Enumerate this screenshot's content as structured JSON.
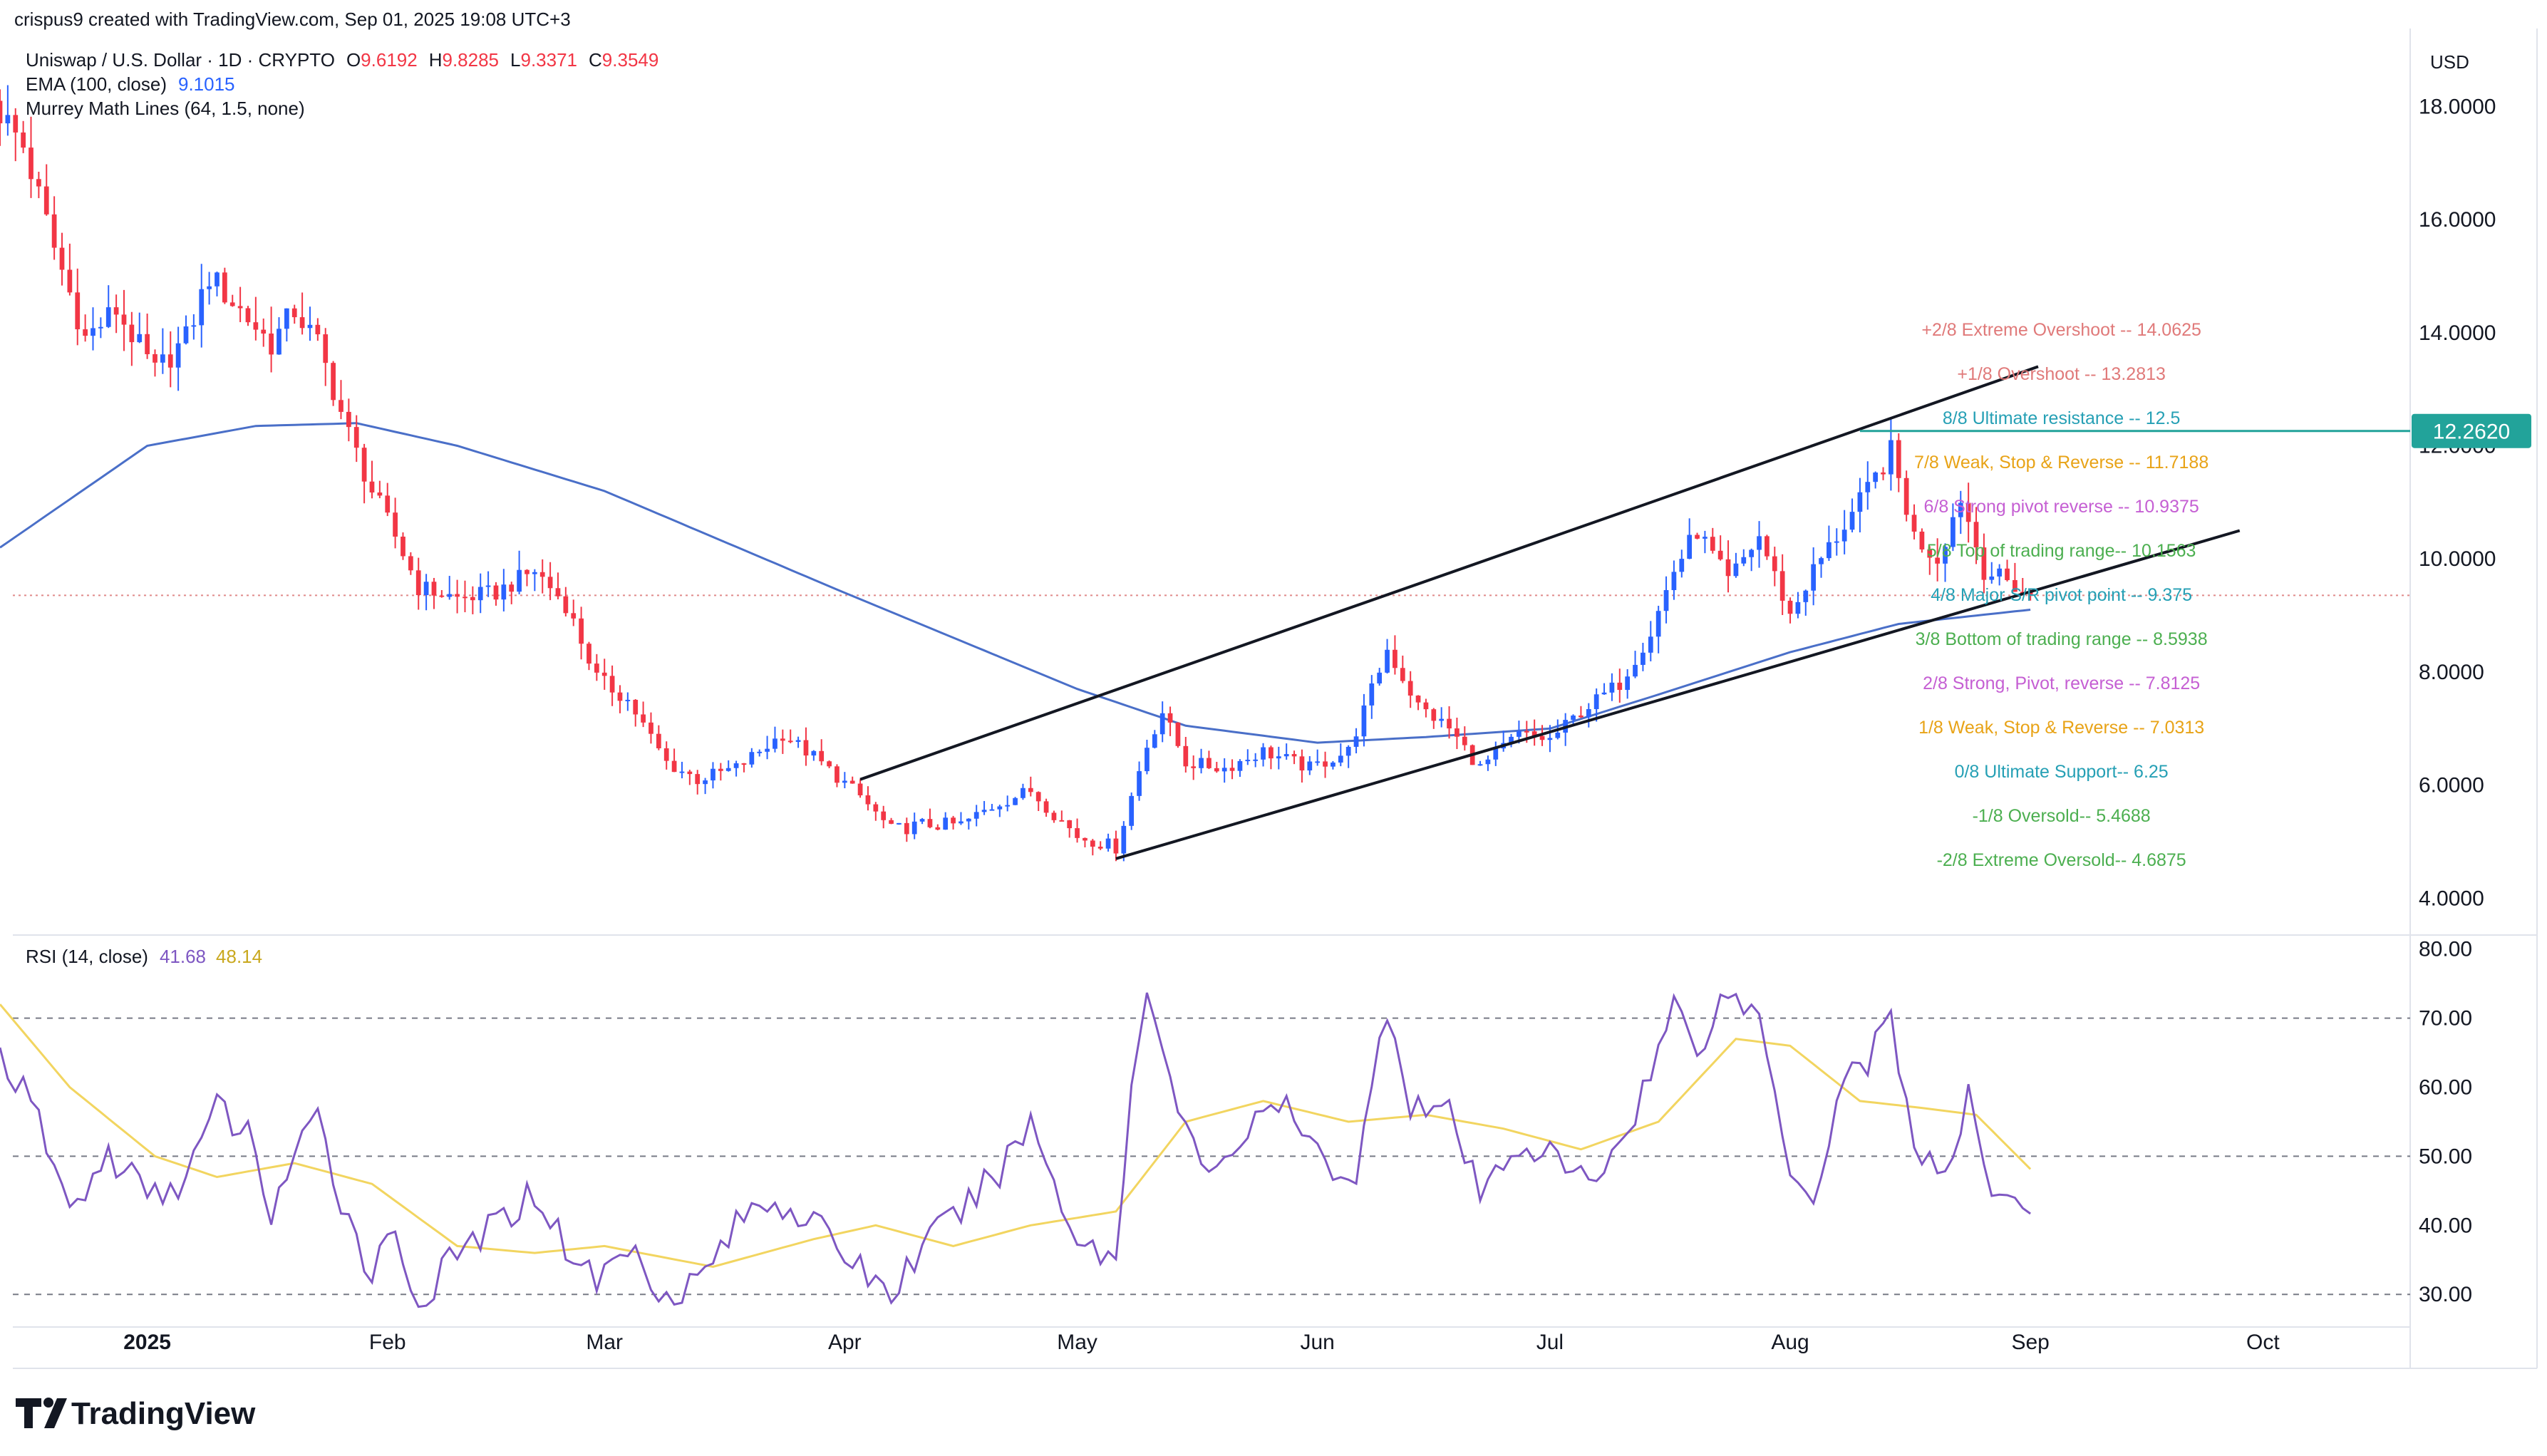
{
  "header": {
    "credit": "crispus9 created with TradingView.com, Sep 01, 2025 19:08 UTC+3",
    "symbol": "Uniswap / U.S. Dollar · 1D · CRYPTO",
    "ohlc": [
      {
        "label": "O",
        "value": "9.6192"
      },
      {
        "label": "H",
        "value": "9.8285"
      },
      {
        "label": "L",
        "value": "9.3371"
      },
      {
        "label": "C",
        "value": "9.3549"
      }
    ],
    "ema_label": "EMA (100, close)",
    "ema_value": "9.1015",
    "murrey_label": "Murrey Math Lines (64, 1.5, none)",
    "currency": "USD",
    "rsi_label": "RSI (14, close)",
    "rsi_value": "41.68",
    "rsi_ma_value": "48.14"
  },
  "colors": {
    "up": "#2962ff",
    "down": "#f23645",
    "ema": "#4a6fc8",
    "rsi": "#7e57c2",
    "rsi_ma": "#f2d560",
    "price_badge": "#22a39a",
    "value_red": "#f23645",
    "value_blue": "#2962ff",
    "value_yellow": "#c9a81e"
  },
  "branding": {
    "logo_text": "TradingView"
  },
  "chart_data": [
    {
      "type": "candlestick",
      "title": "Uniswap / U.S. Dollar · 1D · CRYPTO",
      "y_ticks": [
        "18.0000",
        "16.0000",
        "14.0000",
        "12.0000",
        "10.0000",
        "8.0000",
        "6.0000",
        "4.0000"
      ],
      "ylim": [
        3.5,
        19.0
      ],
      "x_ticks": [
        "2025",
        "Feb",
        "Mar",
        "Apr",
        "May",
        "Jun",
        "Jul",
        "Aug",
        "Sep",
        "Oct"
      ],
      "x_range": [
        "2024-12-13",
        "2025-10-20"
      ],
      "last_price": "12.2620",
      "last_price_value": 12.262,
      "current_close": 9.355,
      "ema_last": 9.1015,
      "close_anchors": [
        [
          "2024-12-13",
          17.9
        ],
        [
          "2024-12-16",
          17.3
        ],
        [
          "2024-12-20",
          15.5
        ],
        [
          "2024-12-24",
          13.9
        ],
        [
          "2024-12-28",
          14.4
        ],
        [
          "2025-01-02",
          13.3
        ],
        [
          "2025-01-06",
          13.9
        ],
        [
          "2025-01-09",
          15.0
        ],
        [
          "2025-01-13",
          14.4
        ],
        [
          "2025-01-17",
          13.8
        ],
        [
          "2025-01-20",
          14.4
        ],
        [
          "2025-01-23",
          13.8
        ],
        [
          "2025-01-27",
          12.2
        ],
        [
          "2025-01-30",
          11.2
        ],
        [
          "2025-02-02",
          10.4
        ],
        [
          "2025-02-05",
          9.5
        ],
        [
          "2025-02-10",
          9.3
        ],
        [
          "2025-02-15",
          9.4
        ],
        [
          "2025-02-20",
          9.8
        ],
        [
          "2025-02-24",
          9.2
        ],
        [
          "2025-02-28",
          7.9
        ],
        [
          "2025-03-04",
          7.5
        ],
        [
          "2025-03-09",
          6.4
        ],
        [
          "2025-03-13",
          6.1
        ],
        [
          "2025-03-18",
          6.3
        ],
        [
          "2025-03-24",
          6.9
        ],
        [
          "2025-03-28",
          6.5
        ],
        [
          "2025-04-03",
          5.8
        ],
        [
          "2025-04-07",
          5.2
        ],
        [
          "2025-04-11",
          5.3
        ],
        [
          "2025-04-16",
          5.3
        ],
        [
          "2025-04-21",
          5.7
        ],
        [
          "2025-04-25",
          5.9
        ],
        [
          "2025-05-01",
          5.1
        ],
        [
          "2025-05-06",
          4.9
        ],
        [
          "2025-05-10",
          6.7
        ],
        [
          "2025-05-12",
          7.3
        ],
        [
          "2025-05-15",
          6.4
        ],
        [
          "2025-05-20",
          6.3
        ],
        [
          "2025-05-25",
          6.6
        ],
        [
          "2025-05-31",
          6.3
        ],
        [
          "2025-06-05",
          6.6
        ],
        [
          "2025-06-10",
          8.4
        ],
        [
          "2025-06-14",
          7.4
        ],
        [
          "2025-06-18",
          7.0
        ],
        [
          "2025-06-22",
          6.3
        ],
        [
          "2025-06-27",
          6.9
        ],
        [
          "2025-07-01",
          6.8
        ],
        [
          "2025-07-05",
          7.3
        ],
        [
          "2025-07-10",
          7.8
        ],
        [
          "2025-07-14",
          8.7
        ],
        [
          "2025-07-17",
          9.8
        ],
        [
          "2025-07-20",
          10.5
        ],
        [
          "2025-07-24",
          9.6
        ],
        [
          "2025-07-28",
          10.4
        ],
        [
          "2025-08-01",
          9.0
        ],
        [
          "2025-08-04",
          9.8
        ],
        [
          "2025-08-08",
          10.6
        ],
        [
          "2025-08-11",
          11.2
        ],
        [
          "2025-08-14",
          11.9
        ],
        [
          "2025-08-17",
          10.4
        ],
        [
          "2025-08-20",
          10.0
        ],
        [
          "2025-08-23",
          11.1
        ],
        [
          "2025-08-26",
          9.8
        ],
        [
          "2025-08-29",
          9.6
        ],
        [
          "2025-09-01",
          9.355
        ]
      ],
      "ema_anchors": [
        [
          "2024-12-13",
          10.2
        ],
        [
          "2025-01-01",
          12.0
        ],
        [
          "2025-01-15",
          12.35
        ],
        [
          "2025-01-28",
          12.4
        ],
        [
          "2025-02-10",
          12.0
        ],
        [
          "2025-03-01",
          11.2
        ],
        [
          "2025-04-01",
          9.4
        ],
        [
          "2025-05-01",
          7.7
        ],
        [
          "2025-05-15",
          7.05
        ],
        [
          "2025-06-01",
          6.75
        ],
        [
          "2025-06-15",
          6.85
        ],
        [
          "2025-07-01",
          7.0
        ],
        [
          "2025-07-15",
          7.6
        ],
        [
          "2025-08-01",
          8.35
        ],
        [
          "2025-08-15",
          8.85
        ],
        [
          "2025-09-01",
          9.1015
        ]
      ],
      "channel": {
        "upper": [
          [
            "2025-04-03",
            6.1
          ],
          [
            "2025-09-02",
            13.4
          ]
        ],
        "lower": [
          [
            "2025-05-06",
            4.7
          ],
          [
            "2025-09-28",
            10.5
          ]
        ]
      },
      "horizontal_line": {
        "from": "2025-08-10",
        "value": 12.262
      },
      "current_price_line": {
        "value": 9.355
      },
      "murrey_lines": [
        {
          "label": "+2/8 Extreme Overshoot --  14.0625",
          "value": 14.0625,
          "color": "#e07a7a"
        },
        {
          "label": "+1/8 Overshoot --  13.2813",
          "value": 13.2813,
          "color": "#e07a7a"
        },
        {
          "label": "8/8 Ultimate resistance --  12.5",
          "value": 12.5,
          "color": "#26a0b5"
        },
        {
          "label": "7/8 Weak, Stop & Reverse --  11.7188",
          "value": 11.7188,
          "color": "#e8a317"
        },
        {
          "label": "6/8 Strong pivot reverse --  10.9375",
          "value": 10.9375,
          "color": "#c55fd3"
        },
        {
          "label": "5/8 Top of trading range--  10.1563",
          "value": 10.1563,
          "color": "#4caf50"
        },
        {
          "label": "4/8 Major S/R pivot point --  9.375",
          "value": 9.375,
          "color": "#26a0b5"
        },
        {
          "label": "3/8 Bottom of trading range --  8.5938",
          "value": 8.5938,
          "color": "#4caf50"
        },
        {
          "label": "2/8 Strong, Pivot, reverse --  7.8125",
          "value": 7.8125,
          "color": "#c55fd3"
        },
        {
          "label": "1/8 Weak, Stop & Reverse --  7.0313",
          "value": 7.0313,
          "color": "#e8a317"
        },
        {
          "label": "0/8 Ultimate Support--  6.25",
          "value": 6.25,
          "color": "#26a0b5"
        },
        {
          "label": "-1/8 Oversold--  5.4688",
          "value": 5.4688,
          "color": "#4caf50"
        },
        {
          "label": "-2/8 Extreme Oversold--  4.6875",
          "value": 4.6875,
          "color": "#4caf50"
        }
      ]
    },
    {
      "type": "line",
      "title": "RSI (14, close)",
      "y_ticks": [
        "80.00",
        "70.00",
        "60.00",
        "50.00",
        "40.00",
        "30.00"
      ],
      "ylim": [
        26,
        81
      ],
      "reference_lines": [
        70,
        50,
        30
      ],
      "last_rsi": 41.68,
      "last_ma": 48.14,
      "rsi_anchors": [
        [
          "2024-12-13",
          65
        ],
        [
          "2024-12-18",
          55
        ],
        [
          "2024-12-22",
          42
        ],
        [
          "2024-12-27",
          50
        ],
        [
          "2025-01-02",
          44
        ],
        [
          "2025-01-06",
          47
        ],
        [
          "2025-01-10",
          57
        ],
        [
          "2025-01-14",
          53
        ],
        [
          "2025-01-17",
          42
        ],
        [
          "2025-01-20",
          50
        ],
        [
          "2025-01-23",
          55
        ],
        [
          "2025-01-26",
          44
        ],
        [
          "2025-01-30",
          33
        ],
        [
          "2025-02-02",
          40
        ],
        [
          "2025-02-05",
          28
        ],
        [
          "2025-02-10",
          36
        ],
        [
          "2025-02-15",
          40
        ],
        [
          "2025-02-20",
          45
        ],
        [
          "2025-02-24",
          37
        ],
        [
          "2025-02-28",
          32
        ],
        [
          "2025-03-04",
          37
        ],
        [
          "2025-03-09",
          30
        ],
        [
          "2025-03-13",
          32
        ],
        [
          "2025-03-18",
          40
        ],
        [
          "2025-03-22",
          44
        ],
        [
          "2025-03-26",
          42
        ],
        [
          "2025-03-30",
          38
        ],
        [
          "2025-04-03",
          34
        ],
        [
          "2025-04-07",
          30
        ],
        [
          "2025-04-11",
          37
        ],
        [
          "2025-04-16",
          42
        ],
        [
          "2025-04-21",
          48
        ],
        [
          "2025-04-25",
          55
        ],
        [
          "2025-05-01",
          38
        ],
        [
          "2025-05-06",
          35
        ],
        [
          "2025-05-08",
          60
        ],
        [
          "2025-05-10",
          76
        ],
        [
          "2025-05-13",
          60
        ],
        [
          "2025-05-17",
          48
        ],
        [
          "2025-05-22",
          52
        ],
        [
          "2025-05-27",
          58
        ],
        [
          "2025-06-01",
          50
        ],
        [
          "2025-06-06",
          47
        ],
        [
          "2025-06-10",
          72
        ],
        [
          "2025-06-13",
          58
        ],
        [
          "2025-06-18",
          56
        ],
        [
          "2025-06-22",
          44
        ],
        [
          "2025-06-27",
          52
        ],
        [
          "2025-07-01",
          50
        ],
        [
          "2025-07-06",
          46
        ],
        [
          "2025-07-10",
          52
        ],
        [
          "2025-07-14",
          62
        ],
        [
          "2025-07-17",
          72
        ],
        [
          "2025-07-20",
          66
        ],
        [
          "2025-07-24",
          74
        ],
        [
          "2025-07-28",
          70
        ],
        [
          "2025-08-01",
          49
        ],
        [
          "2025-08-04",
          44
        ],
        [
          "2025-08-08",
          62
        ],
        [
          "2025-08-11",
          64
        ],
        [
          "2025-08-14",
          70
        ],
        [
          "2025-08-17",
          52
        ],
        [
          "2025-08-21",
          46
        ],
        [
          "2025-08-24",
          58
        ],
        [
          "2025-08-27",
          46
        ],
        [
          "2025-08-30",
          44
        ],
        [
          "2025-09-01",
          41.68
        ]
      ],
      "ma_anchors": [
        [
          "2024-12-13",
          72
        ],
        [
          "2024-12-22",
          60
        ],
        [
          "2025-01-02",
          50
        ],
        [
          "2025-01-10",
          47
        ],
        [
          "2025-01-20",
          49
        ],
        [
          "2025-01-30",
          46
        ],
        [
          "2025-02-10",
          37
        ],
        [
          "2025-02-20",
          36
        ],
        [
          "2025-03-01",
          37
        ],
        [
          "2025-03-15",
          34
        ],
        [
          "2025-03-28",
          38
        ],
        [
          "2025-04-05",
          40
        ],
        [
          "2025-04-15",
          37
        ],
        [
          "2025-04-25",
          40
        ],
        [
          "2025-05-06",
          42
        ],
        [
          "2025-05-15",
          55
        ],
        [
          "2025-05-25",
          58
        ],
        [
          "2025-06-05",
          55
        ],
        [
          "2025-06-15",
          56
        ],
        [
          "2025-06-25",
          54
        ],
        [
          "2025-07-05",
          51
        ],
        [
          "2025-07-15",
          55
        ],
        [
          "2025-07-25",
          67
        ],
        [
          "2025-08-01",
          66
        ],
        [
          "2025-08-10",
          58
        ],
        [
          "2025-08-18",
          57
        ],
        [
          "2025-08-25",
          56
        ],
        [
          "2025-09-01",
          48.14
        ]
      ]
    }
  ]
}
